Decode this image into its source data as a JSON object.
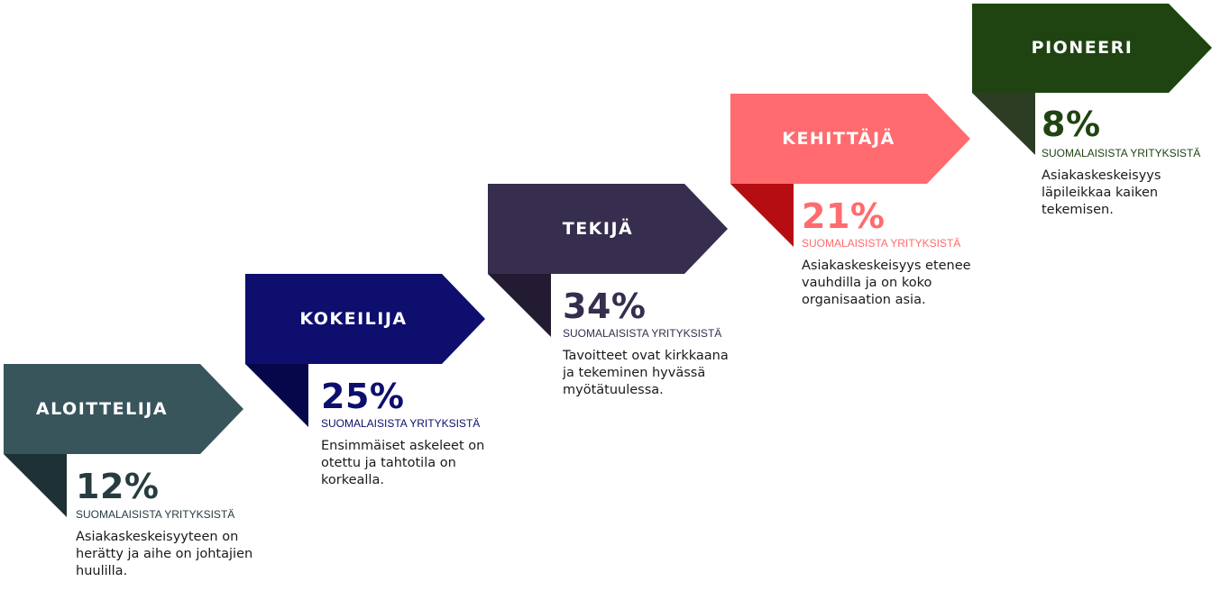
{
  "stages": [
    {
      "title": "ALOITTELIJA",
      "percent": "12%",
      "subtitle": "SUOMALAISISTA YRITYKSISTÄ",
      "description": "Asiakaskeskeisyyteen on herätty ja aihe on johtajien huulilla.",
      "colors": {
        "main": "#38555c",
        "fold": "#1d3136",
        "text": "#263c40"
      }
    },
    {
      "title": "KOKEILIJA",
      "percent": "25%",
      "subtitle": "SUOMALAISISTA YRITYKSISTÄ",
      "description": "Ensimmäiset askeleet on otettu ja tahtotila on korkealla.",
      "colors": {
        "main": "#0d0e6e",
        "fold": "#06074a",
        "text": "#0d0e6e"
      }
    },
    {
      "title": "TEKIJÄ",
      "percent": "34%",
      "subtitle": "SUOMALAISISTA YRITYKSISTÄ",
      "description": "Tavoitteet ovat kirkkaana ja tekeminen hyvässä myötätuulessa.",
      "colors": {
        "main": "#372d4e",
        "fold": "#221b31",
        "text": "#372d4e"
      }
    },
    {
      "title": "KEHITTÄJÄ",
      "percent": "21%",
      "subtitle": "SUOMALAISISTA YRITYKSISTÄ",
      "description": "Asiakaskeskeisyys etenee vauhdilla ja on koko organisaation asia.",
      "colors": {
        "main": "#ff6b6e",
        "fold": "#b60d12",
        "text": "#ff6b6e"
      }
    },
    {
      "title": "PIONEERI",
      "percent": "8%",
      "subtitle": "SUOMALAISISTA YRITYKSISTÄ",
      "description": "Asiakaskeskeisyys läpileikkaa kaiken tekemisen.",
      "colors": {
        "main": "#1f4412",
        "fold": "#2d3d24",
        "text": "#1f4412"
      }
    }
  ]
}
